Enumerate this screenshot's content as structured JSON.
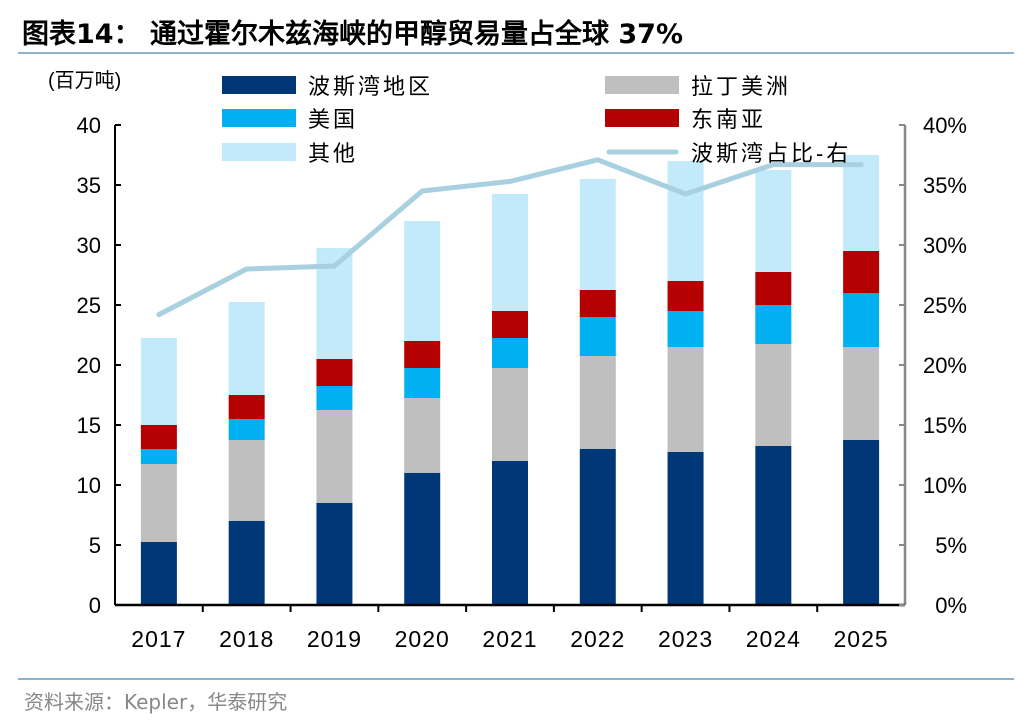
{
  "title": "图表14：  通过霍尔木兹海峡的甲醇贸易量占全球 37%",
  "source": "资料来源：Kepler，华泰研究",
  "chart_data": {
    "type": "bar",
    "stacked": true,
    "title": "图表14：  通过霍尔木兹海峡的甲醇贸易量占全球 37%",
    "ylabel": "(百万吨)",
    "ylim": [
      0,
      40
    ],
    "yticks": [
      0,
      5,
      10,
      15,
      20,
      25,
      30,
      35,
      40
    ],
    "y2lim": [
      0,
      40
    ],
    "y2ticks": [
      "0%",
      "5%",
      "10%",
      "15%",
      "20%",
      "25%",
      "30%",
      "35%",
      "40%"
    ],
    "grid": false,
    "legend_placement": "top",
    "categories": [
      "2017",
      "2018",
      "2019",
      "2020",
      "2021",
      "2022",
      "2023",
      "2024",
      "2025"
    ],
    "series": [
      {
        "name": "波斯湾地区",
        "color": "#003776",
        "values": [
          5.25,
          7.0,
          8.5,
          11.0,
          12.0,
          13.0,
          12.75,
          13.25,
          13.75
        ]
      },
      {
        "name": "拉丁美洲",
        "color": "#bfbfbf",
        "values": [
          6.5,
          6.75,
          7.75,
          6.25,
          7.75,
          7.75,
          8.75,
          8.5,
          7.75
        ]
      },
      {
        "name": "美国",
        "color": "#00b0f0",
        "values": [
          1.25,
          1.75,
          2.0,
          2.5,
          2.5,
          3.25,
          3.0,
          3.25,
          4.5
        ]
      },
      {
        "name": "东南亚",
        "color": "#b40000",
        "values": [
          2.0,
          2.0,
          2.25,
          2.25,
          2.25,
          2.25,
          2.5,
          2.75,
          3.5
        ]
      },
      {
        "name": "其他",
        "color": "#c2eafa",
        "values": [
          7.25,
          7.75,
          9.25,
          10.0,
          9.75,
          9.25,
          10.0,
          8.5,
          8.0
        ]
      }
    ],
    "line_series": {
      "name": "波斯湾占比-右",
      "color": "#a8d0e0",
      "unit": "%",
      "values": [
        24.2,
        28.0,
        28.25,
        34.5,
        35.3,
        37.1,
        34.25,
        36.7,
        36.7
      ]
    }
  }
}
